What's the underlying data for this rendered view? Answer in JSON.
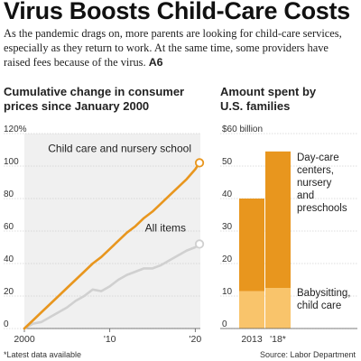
{
  "headline": "Virus Boosts Child-Care Costs",
  "dek": "As the pandemic drags on, more parents are looking for child-care services, especially as they return to work. At the same time, some providers have raised fees because of the virus.",
  "dek_ref": "A6",
  "footnote": "*Latest data available",
  "source": "Source: Labor Department",
  "colors": {
    "orange": "#e8961e",
    "light_orange": "#f9c46b",
    "gray": "#d0d0d0",
    "plot_bg": "#f0f0f0"
  },
  "chart_data": [
    {
      "type": "line",
      "title": "Cumulative change in consumer prices since January 2000",
      "title_lines": [
        "Cumulative change in consumer",
        "prices since January 2000"
      ],
      "x_range": [
        2000,
        2020.6
      ],
      "ylim": [
        0,
        120
      ],
      "y_ticks": [
        0,
        20,
        40,
        60,
        80,
        100,
        120
      ],
      "y_tick_labels": [
        "0",
        "20",
        "40",
        "60",
        "80",
        "100",
        "120%"
      ],
      "x_ticks": [
        2000,
        2010,
        2020
      ],
      "x_tick_labels": [
        "2000",
        "'10",
        "'20"
      ],
      "series": [
        {
          "name": "Child care and nursery school",
          "color": "#e8961e",
          "x": [
            2000,
            2001,
            2002,
            2003,
            2004,
            2005,
            2006,
            2007,
            2008,
            2009,
            2010,
            2011,
            2012,
            2013,
            2014,
            2015,
            2016,
            2017,
            2018,
            2019,
            2020,
            2020.5
          ],
          "y": [
            0,
            5,
            10,
            15,
            20,
            25,
            30,
            35,
            40,
            44,
            49,
            54,
            59,
            63,
            68,
            72,
            77,
            82,
            87,
            92,
            98,
            102
          ]
        },
        {
          "name": "All items",
          "color": "#d0d0d0",
          "x": [
            2000,
            2001,
            2002,
            2003,
            2004,
            2005,
            2006,
            2007,
            2008,
            2009,
            2010,
            2011,
            2012,
            2013,
            2014,
            2015,
            2016,
            2017,
            2018,
            2019,
            2020,
            2020.5
          ],
          "y": [
            0,
            3,
            4,
            7,
            10,
            13,
            17,
            20,
            24,
            23,
            26,
            30,
            33,
            35,
            37,
            37,
            39,
            42,
            45,
            48,
            50,
            52
          ]
        }
      ]
    },
    {
      "type": "bar",
      "stacked": true,
      "title": "Amount spent by U.S. families",
      "title_lines": [
        "Amount spent by",
        "U.S. families"
      ],
      "categories": [
        "2013",
        "'18*"
      ],
      "ylim": [
        0,
        60
      ],
      "y_ticks": [
        0,
        10,
        20,
        30,
        40,
        50,
        60
      ],
      "y_tick_labels": [
        "0",
        "10",
        "20",
        "30",
        "40",
        "50",
        "$60 billion"
      ],
      "series": [
        {
          "name": "Babysitting, child care",
          "name_lines": [
            "Babysitting,",
            "child care"
          ],
          "color": "#f9c46b",
          "values": [
            11.5,
            12.5
          ]
        },
        {
          "name": "Day-care centers, nursery and preschools",
          "name_lines": [
            "Day-care",
            "centers,",
            "nursery",
            "and",
            "preschools"
          ],
          "color": "#e8961e",
          "values": [
            28.5,
            42
          ]
        }
      ]
    }
  ]
}
